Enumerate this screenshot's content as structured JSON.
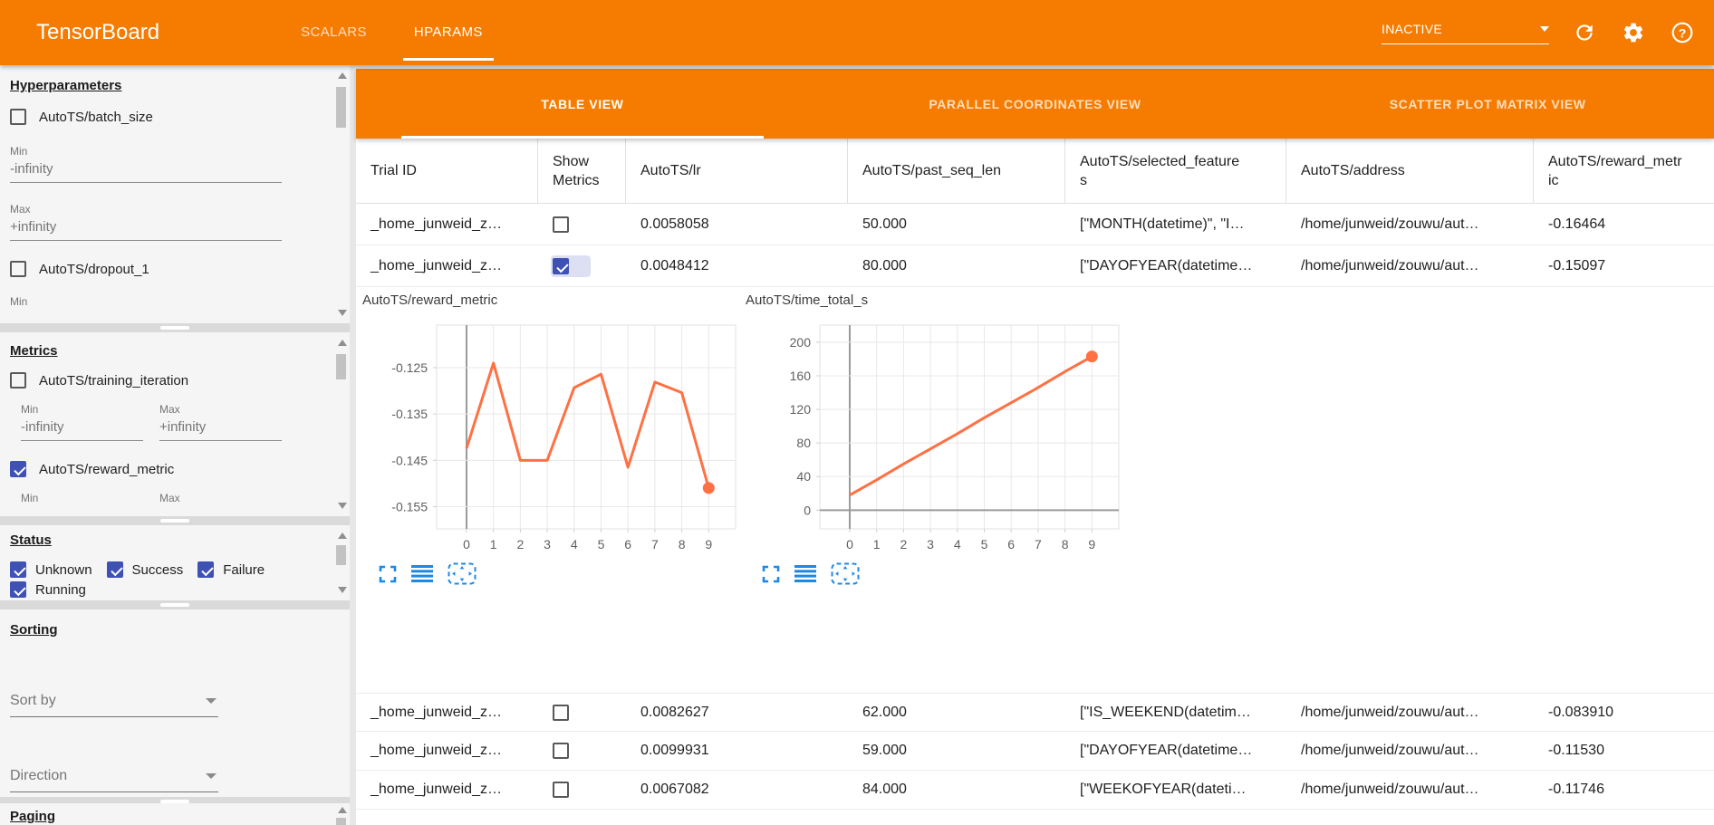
{
  "header": {
    "title": "TensorBoard",
    "tabs": [
      {
        "label": "SCALARS",
        "active": false
      },
      {
        "label": "HPARAMS",
        "active": true
      }
    ],
    "run_selector": "INACTIVE",
    "icons": [
      "chevron-down-icon",
      "refresh-icon",
      "settings-icon",
      "help-icon"
    ]
  },
  "sidebar": {
    "hyperparameters": {
      "heading": "Hyperparameters",
      "items": [
        {
          "label": "AutoTS/batch_size",
          "checked": false,
          "min_label": "Min",
          "min_value": "-infinity",
          "max_label": "Max",
          "max_value": "+infinity"
        },
        {
          "label": "AutoTS/dropout_1",
          "checked": false,
          "min_label": "Min"
        }
      ]
    },
    "metrics": {
      "heading": "Metrics",
      "items": [
        {
          "label": "AutoTS/training_iteration",
          "checked": false,
          "min_label": "Min",
          "min_value": "-infinity",
          "max_label": "Max",
          "max_value": "+infinity"
        },
        {
          "label": "AutoTS/reward_metric",
          "checked": true,
          "min_label": "Min",
          "max_label": "Max"
        }
      ]
    },
    "status": {
      "heading": "Status",
      "items": [
        {
          "label": "Unknown",
          "checked": true
        },
        {
          "label": "Success",
          "checked": true
        },
        {
          "label": "Failure",
          "checked": true
        },
        {
          "label": "Running",
          "checked": true
        }
      ]
    },
    "sorting": {
      "heading": "Sorting",
      "sort_by_label": "Sort by",
      "direction_label": "Direction"
    },
    "paging": {
      "heading": "Paging"
    }
  },
  "main": {
    "view_tabs": [
      {
        "label": "TABLE VIEW",
        "active": true
      },
      {
        "label": "PARALLEL COORDINATES VIEW",
        "active": false
      },
      {
        "label": "SCATTER PLOT MATRIX VIEW",
        "active": false
      }
    ],
    "table": {
      "columns": [
        "Trial ID",
        "Show Metrics",
        "AutoTS/lr",
        "AutoTS/past_seq_len",
        "AutoTS/selected_features",
        "AutoTS/address",
        "AutoTS/reward_metric"
      ],
      "rows": [
        {
          "trial_id": "_home_junweid_z…",
          "show_metrics": false,
          "lr": "0.0058058",
          "past_seq_len": "50.000",
          "selected_features": "[\"MONTH(datetime)\", \"I…",
          "address": "/home/junweid/zouwu/aut…",
          "reward_metric": "-0.16464"
        },
        {
          "trial_id": "_home_junweid_z…",
          "show_metrics": true,
          "lr": "0.0048412",
          "past_seq_len": "80.000",
          "selected_features": "[\"DAYOFYEAR(datetime…",
          "address": "/home/junweid/zouwu/aut…",
          "reward_metric": "-0.15097"
        },
        {
          "trial_id": "_home_junweid_z…",
          "show_metrics": false,
          "lr": "0.0082627",
          "past_seq_len": "62.000",
          "selected_features": "[\"IS_WEEKEND(datetim…",
          "address": "/home/junweid/zouwu/aut…",
          "reward_metric": "-0.083910"
        },
        {
          "trial_id": "_home_junweid_z…",
          "show_metrics": false,
          "lr": "0.0099931",
          "past_seq_len": "59.000",
          "selected_features": "[\"DAYOFYEAR(datetime…",
          "address": "/home/junweid/zouwu/aut…",
          "reward_metric": "-0.11530"
        },
        {
          "trial_id": "_home_junweid_z…",
          "show_metrics": false,
          "lr": "0.0067082",
          "past_seq_len": "84.000",
          "selected_features": "[\"WEEKOFYEAR(dateti…",
          "address": "/home/junweid/zouwu/aut…",
          "reward_metric": "-0.11746"
        }
      ]
    },
    "chart_tools": [
      "fullscreen-icon",
      "runs-list-icon",
      "pan-zoom-icon"
    ]
  },
  "chart_data": [
    {
      "type": "line",
      "title": "AutoTS/reward_metric",
      "xlabel": "",
      "ylabel": "",
      "x": [
        0,
        1,
        2,
        3,
        4,
        5,
        6,
        7,
        8,
        9
      ],
      "values": [
        -0.1424,
        -0.124,
        -0.145,
        -0.145,
        -0.1293,
        -0.1264,
        -0.1465,
        -0.1281,
        -0.1304,
        -0.15097
      ],
      "xticks": [
        0,
        1,
        2,
        3,
        4,
        5,
        6,
        7,
        8,
        9
      ],
      "yticks": [
        -0.125,
        -0.135,
        -0.145,
        -0.155
      ],
      "xlim": [
        -1.11,
        10
      ],
      "ylim": [
        -0.1598,
        -0.1158
      ],
      "grid": true,
      "legend": false,
      "line_color": "#ff7043",
      "end_marker": true
    },
    {
      "type": "line",
      "title": "AutoTS/time_total_s",
      "xlabel": "",
      "ylabel": "",
      "x": [
        0,
        1,
        2,
        3,
        4,
        5,
        6,
        7,
        8,
        9
      ],
      "values": [
        18,
        36,
        55,
        73,
        91,
        110,
        128,
        146,
        165,
        183
      ],
      "xticks": [
        0,
        1,
        2,
        3,
        4,
        5,
        6,
        7,
        8,
        9
      ],
      "yticks": [
        0,
        40,
        80,
        120,
        160,
        200
      ],
      "xlim": [
        -1.11,
        10
      ],
      "ylim": [
        -22.3,
        220.4
      ],
      "grid": true,
      "legend": false,
      "line_color": "#ff7043",
      "end_marker": true
    }
  ],
  "colors": {
    "header_orange": "#f57c00",
    "chart_line": "#ff7043",
    "checkbox_blue": "#3f51b5",
    "tool_icon_blue": "#1e88e5"
  }
}
